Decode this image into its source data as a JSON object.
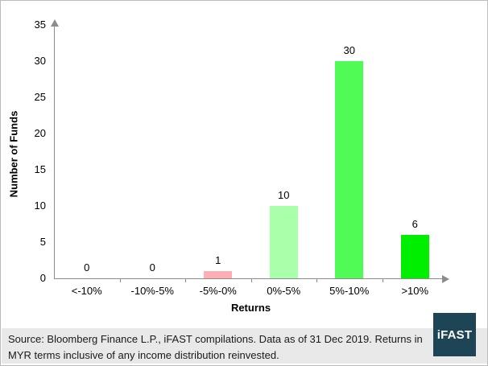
{
  "chart_data": {
    "type": "bar",
    "categories": [
      "<-10%",
      "-10%-5%",
      "-5%-0%",
      "0%-5%",
      "5%-10%",
      ">10%"
    ],
    "values": [
      0,
      0,
      1,
      10,
      30,
      6
    ],
    "bar_colors": [
      "#ffaeb5",
      "#ffaeb5",
      "#ffaeb5",
      "#aaffaa",
      "#50fb55",
      "#00ee00"
    ],
    "title": "",
    "xlabel": "Returns",
    "ylabel": "Number of Funds",
    "ylim": [
      0,
      35
    ],
    "yticks": [
      0,
      5,
      10,
      15,
      20,
      25,
      30,
      35
    ],
    "grid": false,
    "legend": "none",
    "value_labels_shown": true
  },
  "footer": {
    "source_text": "Source: Bloomberg Finance L.P., iFAST compilations. Data as of 31 Dec 2019.  Returns in MYR terms inclusive of any income distribution reinvested."
  },
  "logo": {
    "text": "iFAST",
    "bg_color": "#1d4556"
  },
  "style": {
    "axis_color": "#8c8c8c",
    "footer_bg": "#e9e9e9",
    "frame_border": "#bcbcbc",
    "text_color": "#000000"
  }
}
